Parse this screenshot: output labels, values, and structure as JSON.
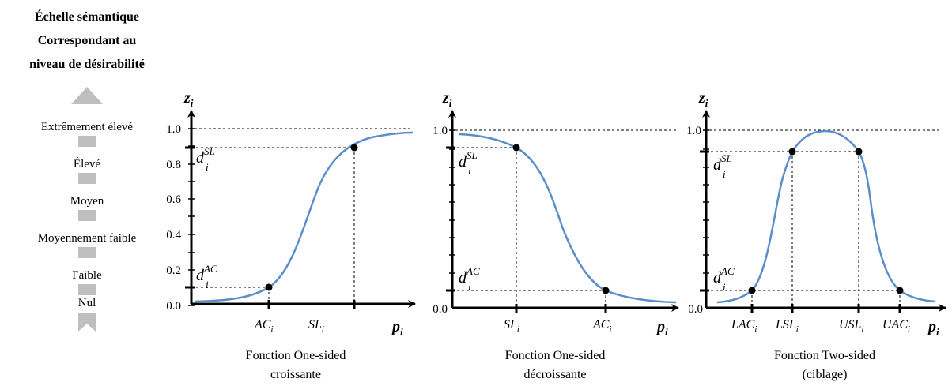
{
  "scale": {
    "title_lines": [
      "Échelle sémantique",
      "Correspondant au",
      "niveau de désirabilité"
    ],
    "levels": [
      "Extrêmement élevé",
      "Élevé",
      "Moyen",
      "Moyennement faible",
      "Faible",
      "Nul"
    ],
    "arrow_color": "#bfbfbf"
  },
  "curve_color": "#5b8ec8",
  "panels": [
    {
      "caption_lines": [
        "Fonction One-sided",
        "croissante"
      ],
      "y_axis_label": "z",
      "y_axis_sub": "i",
      "x_axis_label": "p",
      "x_axis_sub": "i",
      "y_ticks": [
        "0.0",
        "0.2",
        "0.4",
        "0.6",
        "0.8",
        "1.0"
      ],
      "x_labels": [
        {
          "main": "AC",
          "sub": "i"
        },
        {
          "main": "SL",
          "sub": "i"
        }
      ],
      "d_labels": [
        {
          "main": "d",
          "sub": "i",
          "sup": "SL"
        },
        {
          "main": "d",
          "sub": "i",
          "sup": "AC"
        }
      ]
    },
    {
      "caption_lines": [
        "Fonction One-sided",
        "décroissante"
      ],
      "y_axis_label": "z",
      "y_axis_sub": "i",
      "x_axis_label": "p",
      "x_axis_sub": "i",
      "y_ticks": [
        "0.0",
        "1.0"
      ],
      "x_labels": [
        {
          "main": "SL",
          "sub": "i"
        },
        {
          "main": "AC",
          "sub": "i"
        }
      ],
      "d_labels": [
        {
          "main": "d",
          "sub": "i",
          "sup": "SL"
        },
        {
          "main": "d",
          "sub": "i",
          "sup": "AC"
        }
      ]
    },
    {
      "caption_lines": [
        "Fonction Two-sided",
        "(ciblage)"
      ],
      "y_axis_label": "z",
      "y_axis_sub": "i",
      "x_axis_label": "p",
      "x_axis_sub": "i",
      "y_ticks": [
        "0.0",
        "1.0"
      ],
      "x_labels": [
        {
          "main": "LAC",
          "sub": "i"
        },
        {
          "main": "LSL",
          "sub": "i"
        },
        {
          "main": "USL",
          "sub": "i"
        },
        {
          "main": "UAC",
          "sub": "i"
        }
      ],
      "d_labels": [
        {
          "main": "d",
          "sub": "i",
          "sup": "SL"
        },
        {
          "main": "d",
          "sub": "i",
          "sup": "AC"
        }
      ]
    }
  ]
}
